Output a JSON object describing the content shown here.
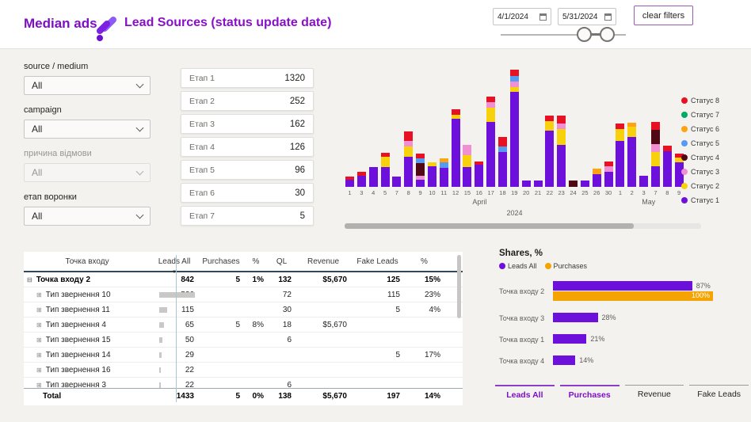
{
  "header": {
    "brand": "Median ads",
    "title": "Lead Sources (status update date)",
    "date_from": "4/1/2024",
    "date_to": "5/31/2024",
    "clear_filters_label": "clear filters"
  },
  "filters": [
    {
      "label": "source / medium",
      "value": "All",
      "disabled": false
    },
    {
      "label": "campaign",
      "value": "All",
      "disabled": false
    },
    {
      "label": "причина відмови",
      "value": "All",
      "disabled": true
    },
    {
      "label": "етап воронки",
      "value": "All",
      "disabled": false
    }
  ],
  "funnel": [
    {
      "label": "Етап 1",
      "value": "1320"
    },
    {
      "label": "Етап 2",
      "value": "252"
    },
    {
      "label": "Етап 3",
      "value": "162"
    },
    {
      "label": "Етап 4",
      "value": "126"
    },
    {
      "label": "Етап 5",
      "value": "96"
    },
    {
      "label": "Етап 6",
      "value": "30"
    },
    {
      "label": "Етап 7",
      "value": "5"
    }
  ],
  "colors": {
    "s1": "#6d10dc",
    "s2": "#f7d10c",
    "s3": "#f08fd2",
    "s4": "#500914",
    "s5": "#559bf2",
    "s6": "#ffa312",
    "s7": "#00a966",
    "s8": "#e81123",
    "shares_purple": "#6d10dc",
    "shares_orange": "#f5a300"
  },
  "chart_data": [
    {
      "type": "bar",
      "stacked": true,
      "note": "daily stacked leads by status; y-axis unlabeled, values estimated",
      "ylim": [
        0,
        150
      ],
      "legend_position": "right",
      "legend": [
        {
          "name": "Статус 8",
          "color": "#e81123"
        },
        {
          "name": "Статус 7",
          "color": "#00a966"
        },
        {
          "name": "Статус 6",
          "color": "#ffa312"
        },
        {
          "name": "Статус 5",
          "color": "#559bf2"
        },
        {
          "name": "Статус 4",
          "color": "#500914"
        },
        {
          "name": "Статус 3",
          "color": "#f08fd2"
        },
        {
          "name": "Статус 2",
          "color": "#f7d10c"
        },
        {
          "name": "Статус 1",
          "color": "#6d10dc"
        }
      ],
      "month_groups": [
        {
          "label": "April",
          "span": 23
        },
        {
          "label": "May",
          "span": 6
        }
      ],
      "year_label": "2024",
      "bars": [
        {
          "day": "1",
          "segments": [
            [
              "s1",
              9
            ],
            [
              "s8",
              4
            ]
          ]
        },
        {
          "day": "3",
          "segments": [
            [
              "s1",
              14
            ],
            [
              "s8",
              5
            ]
          ]
        },
        {
          "day": "4",
          "segments": [
            [
              "s1",
              25
            ]
          ]
        },
        {
          "day": "5",
          "segments": [
            [
              "s1",
              25
            ],
            [
              "s2",
              13
            ],
            [
              "s8",
              5
            ]
          ]
        },
        {
          "day": "7",
          "segments": [
            [
              "s1",
              13
            ]
          ]
        },
        {
          "day": "8",
          "segments": [
            [
              "s1",
              38
            ],
            [
              "s2",
              13
            ],
            [
              "s3",
              7
            ],
            [
              "s8",
              12
            ]
          ]
        },
        {
          "day": "9",
          "segments": [
            [
              "s1",
              9
            ],
            [
              "s3",
              5
            ],
            [
              "s4",
              16
            ],
            [
              "s5",
              6
            ],
            [
              "s8",
              6
            ]
          ]
        },
        {
          "day": "10",
          "segments": [
            [
              "s1",
              26
            ],
            [
              "s2",
              5
            ]
          ]
        },
        {
          "day": "11",
          "segments": [
            [
              "s1",
              24
            ],
            [
              "s5",
              7
            ],
            [
              "s6",
              5
            ]
          ]
        },
        {
          "day": "12",
          "segments": [
            [
              "s1",
              86
            ],
            [
              "s2",
              5
            ],
            [
              "s8",
              7
            ]
          ]
        },
        {
          "day": "15",
          "segments": [
            [
              "s1",
              25
            ],
            [
              "s2",
              15
            ],
            [
              "s3",
              13
            ]
          ]
        },
        {
          "day": "16",
          "segments": [
            [
              "s1",
              28
            ],
            [
              "s8",
              4
            ]
          ]
        },
        {
          "day": "17",
          "segments": [
            [
              "s1",
              82
            ],
            [
              "s2",
              18
            ],
            [
              "s3",
              7
            ],
            [
              "s8",
              7
            ]
          ]
        },
        {
          "day": "18",
          "segments": [
            [
              "s1",
              44
            ],
            [
              "s5",
              7
            ],
            [
              "s8",
              12
            ]
          ]
        },
        {
          "day": "19",
          "segments": [
            [
              "s1",
              120
            ],
            [
              "s2",
              6
            ],
            [
              "s3",
              7
            ],
            [
              "s5",
              7
            ],
            [
              "s8",
              8
            ]
          ]
        },
        {
          "day": "20",
          "segments": [
            [
              "s1",
              8
            ]
          ]
        },
        {
          "day": "21",
          "segments": [
            [
              "s1",
              8
            ]
          ]
        },
        {
          "day": "22",
          "segments": [
            [
              "s1",
              71
            ],
            [
              "s2",
              12
            ],
            [
              "s8",
              7
            ]
          ]
        },
        {
          "day": "23",
          "segments": [
            [
              "s1",
              53
            ],
            [
              "s2",
              20
            ],
            [
              "s3",
              7
            ],
            [
              "s8",
              10
            ]
          ]
        },
        {
          "day": "24",
          "segments": [
            [
              "s4",
              8
            ]
          ]
        },
        {
          "day": "25",
          "segments": [
            [
              "s1",
              8
            ]
          ]
        },
        {
          "day": "26",
          "segments": [
            [
              "s1",
              16
            ],
            [
              "s6",
              7
            ]
          ]
        },
        {
          "day": "30",
          "segments": [
            [
              "s1",
              19
            ],
            [
              "s3",
              7
            ],
            [
              "s8",
              6
            ]
          ]
        },
        {
          "day": "1",
          "segments": [
            [
              "s1",
              58
            ],
            [
              "s2",
              15
            ],
            [
              "s8",
              7
            ]
          ]
        },
        {
          "day": "2",
          "segments": [
            [
              "s1",
              63
            ],
            [
              "s2",
              13
            ],
            [
              "s6",
              5
            ]
          ]
        },
        {
          "day": "3",
          "segments": [
            [
              "s1",
              14
            ]
          ]
        },
        {
          "day": "7",
          "segments": [
            [
              "s1",
              26
            ],
            [
              "s2",
              18
            ],
            [
              "s3",
              10
            ],
            [
              "s4",
              18
            ],
            [
              "s8",
              10
            ]
          ]
        },
        {
          "day": "8",
          "segments": [
            [
              "s1",
              45
            ],
            [
              "s8",
              7
            ]
          ]
        },
        {
          "day": "9",
          "segments": [
            [
              "s1",
              31
            ],
            [
              "s2",
              6
            ],
            [
              "s8",
              5
            ]
          ]
        }
      ]
    },
    {
      "type": "bar",
      "orientation": "horizontal",
      "title": "Shares, %",
      "xlim": [
        0,
        100
      ],
      "legend": [
        {
          "name": "Leads All",
          "color": "#6d10dc"
        },
        {
          "name": "Purchases",
          "color": "#f5a300"
        }
      ],
      "groups": [
        {
          "category": "Точка входу 2",
          "bars": [
            {
              "series": "Leads All",
              "pct": 87,
              "label": "87%",
              "inside": false
            },
            {
              "series": "Purchases",
              "pct": 100,
              "label": "100%",
              "inside": true
            }
          ]
        },
        {
          "category": "Точка входу 3",
          "bars": [
            {
              "series": "Leads All",
              "pct": 28,
              "label": "28%",
              "inside": false
            }
          ]
        },
        {
          "category": "Точка входу 1",
          "bars": [
            {
              "series": "Leads All",
              "pct": 21,
              "label": "21%",
              "inside": false
            }
          ]
        },
        {
          "category": "Точка входу 4",
          "bars": [
            {
              "series": "Leads All",
              "pct": 14,
              "label": "14%",
              "inside": false
            }
          ]
        }
      ]
    }
  ],
  "table": {
    "columns": [
      "Точка входу",
      "Leads All",
      "Purchases",
      "%",
      "QL",
      "Revenue",
      "Fake Leads",
      "%"
    ],
    "sorted_by": "Leads All",
    "rows": [
      {
        "icon": "minus",
        "bold": true,
        "name": "Точка входу 2",
        "leads": "842",
        "bar": 0,
        "purchases": "5",
        "pct": "1%",
        "ql": "132",
        "revenue": "$5,670",
        "fake": "125",
        "fpct": "15%"
      },
      {
        "icon": "plus",
        "bold": false,
        "name": "Тип звернення 10",
        "leads": "526",
        "bar": 45,
        "purchases": "",
        "pct": "",
        "ql": "72",
        "revenue": "",
        "fake": "115",
        "fpct": "23%"
      },
      {
        "icon": "plus",
        "bold": false,
        "name": "Тип звернення 11",
        "leads": "115",
        "bar": 10,
        "purchases": "",
        "pct": "",
        "ql": "30",
        "revenue": "",
        "fake": "5",
        "fpct": "4%"
      },
      {
        "icon": "plus",
        "bold": false,
        "name": "Тип звернення 4",
        "leads": "65",
        "bar": 6,
        "purchases": "5",
        "pct": "8%",
        "ql": "18",
        "revenue": "$5,670",
        "fake": "",
        "fpct": ""
      },
      {
        "icon": "plus",
        "bold": false,
        "name": "Тип звернення 15",
        "leads": "50",
        "bar": 4,
        "purchases": "",
        "pct": "",
        "ql": "6",
        "revenue": "",
        "fake": "",
        "fpct": ""
      },
      {
        "icon": "plus",
        "bold": false,
        "name": "Тип звернення 14",
        "leads": "29",
        "bar": 3,
        "purchases": "",
        "pct": "",
        "ql": "",
        "revenue": "",
        "fake": "5",
        "fpct": "17%"
      },
      {
        "icon": "plus",
        "bold": false,
        "name": "Тип звернення 16",
        "leads": "22",
        "bar": 2,
        "purchases": "",
        "pct": "",
        "ql": "",
        "revenue": "",
        "fake": "",
        "fpct": ""
      },
      {
        "icon": "plus",
        "bold": false,
        "name": "Тип звернення 3",
        "leads": "22",
        "bar": 2,
        "purchases": "",
        "pct": "",
        "ql": "6",
        "revenue": "",
        "fake": "",
        "fpct": ""
      }
    ],
    "total": {
      "name": "Total",
      "leads": "1433",
      "purchases": "5",
      "pct": "0%",
      "ql": "138",
      "revenue": "$5,670",
      "fake": "197",
      "fpct": "14%"
    }
  },
  "tabs": [
    {
      "label": "Leads All",
      "active": true
    },
    {
      "label": "Purchases",
      "active": true
    },
    {
      "label": "Revenue",
      "active": false
    },
    {
      "label": "Fake Leads",
      "active": false
    }
  ]
}
